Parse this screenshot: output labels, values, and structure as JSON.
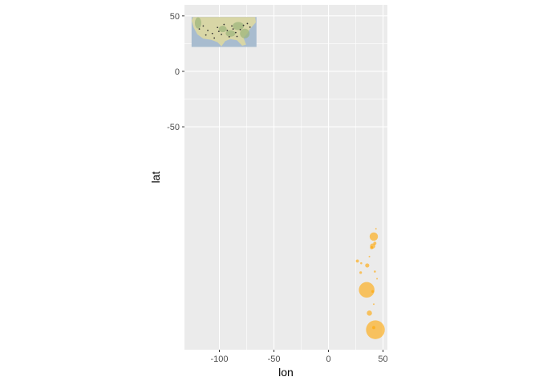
{
  "chart_data": {
    "type": "scatter",
    "xlabel": "lon",
    "ylabel": "lat",
    "xlim": [
      -132,
      54
    ],
    "ylim": [
      -251,
      60
    ],
    "x_ticks": [
      -100,
      -50,
      0,
      50
    ],
    "x_tick_labels": [
      "-100",
      "-50",
      "0",
      "50"
    ],
    "y_ticks": [
      50,
      0,
      -50
    ],
    "y_tick_labels": [
      "50",
      "0",
      "-50"
    ],
    "grid": true,
    "background_color": "#ebebeb",
    "gridline_color": "#ffffff",
    "point_color": "#ffa500",
    "point_opacity": 0.6,
    "inset_image": {
      "icon": "usa-map-image",
      "lon_range": [
        -125.5,
        -66
      ],
      "lat_range": [
        22,
        49
      ]
    },
    "points": [
      {
        "x": 43.5,
        "y": -142,
        "size": 1.5
      },
      {
        "x": 41.5,
        "y": -149,
        "size": 8
      },
      {
        "x": 42.5,
        "y": -155,
        "size": 3
      },
      {
        "x": 40.5,
        "y": -157.5,
        "size": 5
      },
      {
        "x": 39.5,
        "y": -159,
        "size": 3
      },
      {
        "x": 37.5,
        "y": -167,
        "size": 1.5
      },
      {
        "x": 26.5,
        "y": -171,
        "size": 3
      },
      {
        "x": 30,
        "y": -173,
        "size": 2
      },
      {
        "x": 35.5,
        "y": -175,
        "size": 4
      },
      {
        "x": 42.5,
        "y": -180.5,
        "size": 2
      },
      {
        "x": 29.5,
        "y": -181.5,
        "size": 2.5
      },
      {
        "x": 44.5,
        "y": -187,
        "size": 1
      },
      {
        "x": 35,
        "y": -197,
        "size": 15
      },
      {
        "x": 40.5,
        "y": -198.5,
        "size": 2.5
      },
      {
        "x": 41.5,
        "y": -210,
        "size": 1
      },
      {
        "x": 37.5,
        "y": -218,
        "size": 5
      },
      {
        "x": 43,
        "y": -233,
        "size": 18
      },
      {
        "x": 41.5,
        "y": -231,
        "size": 3
      }
    ]
  }
}
